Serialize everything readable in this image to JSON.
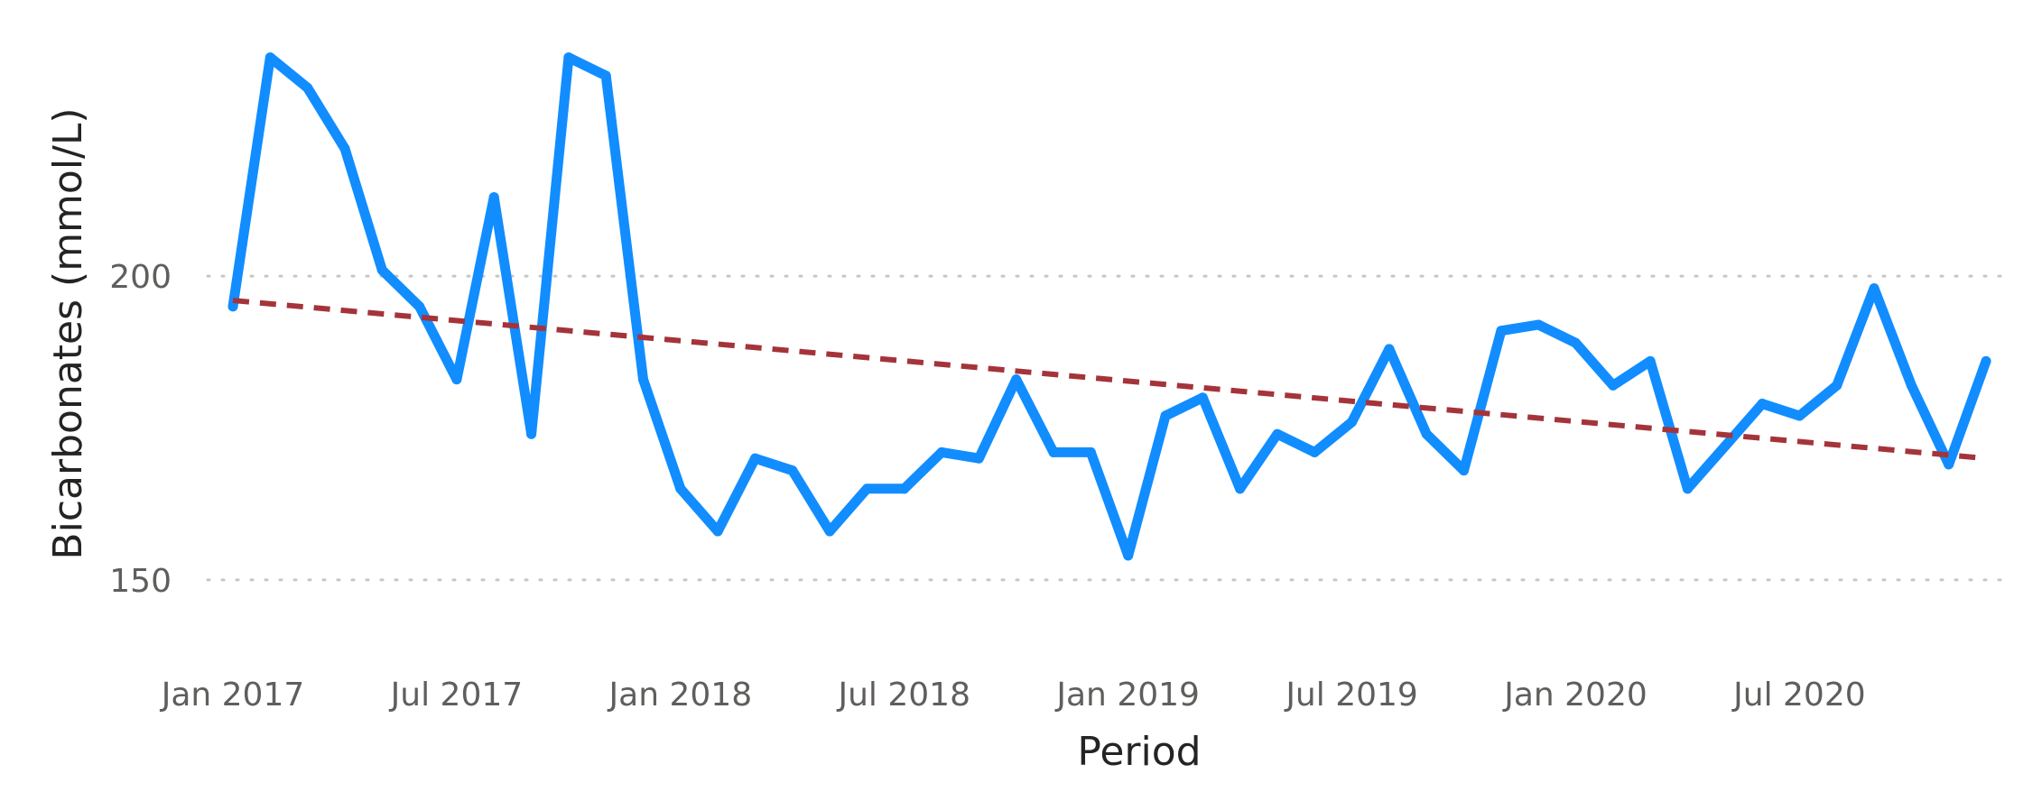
{
  "chart_data": {
    "type": "line",
    "xlabel": "Period",
    "ylabel": "Bicarbonates (mmol/L)",
    "x": [
      "2017-01",
      "2017-02",
      "2017-03",
      "2017-04",
      "2017-05",
      "2017-06",
      "2017-07",
      "2017-08",
      "2017-09",
      "2017-10",
      "2017-11",
      "2017-12",
      "2018-01",
      "2018-02",
      "2018-03",
      "2018-04",
      "2018-05",
      "2018-06",
      "2018-07",
      "2018-08",
      "2018-09",
      "2018-10",
      "2018-11",
      "2018-12",
      "2019-01",
      "2019-02",
      "2019-03",
      "2019-04",
      "2019-05",
      "2019-06",
      "2019-07",
      "2019-08",
      "2019-09",
      "2019-10",
      "2019-11",
      "2019-12",
      "2020-01",
      "2020-02",
      "2020-03",
      "2020-04",
      "2020-05",
      "2020-06",
      "2020-07",
      "2020-08",
      "2020-09",
      "2020-10",
      "2020-11",
      "2020-12"
    ],
    "series": [
      {
        "values": [
          195,
          236,
          231,
          221,
          201,
          195,
          183,
          213,
          174,
          236,
          233,
          183,
          165,
          158,
          170,
          168,
          158,
          165,
          165,
          171,
          170,
          183,
          171,
          171,
          154,
          177,
          180,
          165,
          174,
          171,
          176,
          188,
          174,
          168,
          191,
          192,
          189,
          182,
          186,
          165,
          172,
          179,
          177,
          182,
          198,
          182,
          169,
          186
        ],
        "color": "#118DFF"
      }
    ],
    "trend": {
      "start": 196,
      "end": 170,
      "color": "#A4343A",
      "style": "dashed"
    },
    "xticks": [
      "Jan 2017",
      "Jul 2017",
      "Jan 2018",
      "Jul 2018",
      "Jan 2019",
      "Jul 2019",
      "Jan 2020",
      "Jul 2020"
    ],
    "xtick_positions": [
      "2017-01",
      "2017-07",
      "2018-01",
      "2018-07",
      "2019-01",
      "2019-07",
      "2020-01",
      "2020-07"
    ],
    "yticks": [
      150,
      200
    ],
    "ylim": [
      143,
      241
    ],
    "grid": true,
    "legend": "none"
  }
}
